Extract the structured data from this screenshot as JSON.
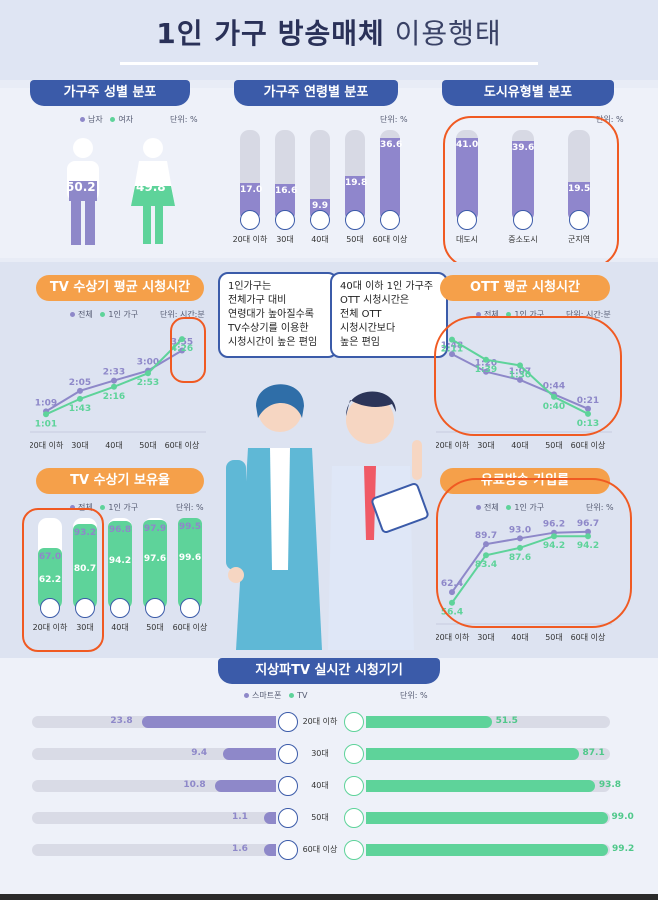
{
  "title": {
    "bold": "1인 가구",
    "bold2": "방송매체",
    "normal": "이용행태"
  },
  "legend": {
    "male": "남자",
    "female": "여자",
    "total": "전체",
    "single": "1인 가구",
    "smartphone": "스마트폰",
    "tv": "TV",
    "unit_pct": "단위: %",
    "unit_time": "단위: 시간:분"
  },
  "sections": {
    "gender": "가구주 성별 분포",
    "age": "가구주 연령별 분포",
    "city": "도시유형별 분포",
    "tv_time": "TV 수상기 평균 시청시간",
    "ott_time": "OTT 평균 시청시간",
    "tv_own": "TV 수상기 보유율",
    "paid": "유료방송 가입률",
    "realtime": "지상파TV 실시간 시청기기"
  },
  "gender": {
    "male": "50.2",
    "female": "49.8"
  },
  "age_dist": {
    "labels": [
      "20대 이하",
      "30대",
      "40대",
      "50대",
      "60대 이상"
    ],
    "values": [
      17.0,
      16.6,
      9.9,
      19.8,
      36.6
    ],
    "display": [
      "17.0",
      "16.6",
      "9.9",
      "19.8",
      "36.6"
    ]
  },
  "city_dist": {
    "labels": [
      "대도시",
      "중소도시",
      "군지역"
    ],
    "values": [
      41.0,
      39.6,
      19.5
    ],
    "display": [
      "41.0",
      "39.6",
      "19.5"
    ]
  },
  "callouts": {
    "left": [
      "1인가구는",
      "전체가구 대비",
      "연령대가 높아질수록",
      "TV수상기를 이용한",
      "시청시간이 높은 편임"
    ],
    "right": [
      "40대 이하 1인 가구주",
      "OTT 시청시간은",
      "전체 OTT",
      "시청시간보다",
      "높은 편임"
    ]
  },
  "tv_time": {
    "labels": [
      "20대 이하",
      "30대",
      "40대",
      "50대",
      "60대 이상"
    ],
    "total": [
      "1:09",
      "2:05",
      "2:33",
      "3:00",
      "3:55"
    ],
    "single": [
      "1:01",
      "1:43",
      "2:16",
      "2:53",
      "4:26"
    ]
  },
  "ott_time": {
    "labels": [
      "20대 이하",
      "30대",
      "40대",
      "50대",
      "60대 이상"
    ],
    "total": [
      "1:48",
      "1:20",
      "1:07",
      "0:44",
      "0:21"
    ],
    "single": [
      "2:11",
      "1:39",
      "1:30",
      "0:40",
      "0:13"
    ]
  },
  "tv_own": {
    "labels": [
      "20대 이하",
      "30대",
      "40대",
      "50대",
      "60대 이상"
    ],
    "total": [
      67.0,
      93.2,
      96.8,
      97.9,
      99.5
    ],
    "single": [
      62.2,
      80.7,
      94.2,
      97.6,
      99.6
    ],
    "total_display": [
      "67.0",
      "93.2",
      "96.8",
      "97.9",
      "99.5"
    ],
    "single_display": [
      "62.2",
      "80.7",
      "94.2",
      "97.6",
      "99.6"
    ]
  },
  "paid": {
    "labels": [
      "20대 이하",
      "30대",
      "40대",
      "50대",
      "60대 이상"
    ],
    "total": [
      "62.4",
      "89.7",
      "93.0",
      "96.2",
      "96.7"
    ],
    "single": [
      "56.4",
      "83.4",
      "87.6",
      "94.2",
      "94.2"
    ]
  },
  "realtime": {
    "labels": [
      "20대 이하",
      "30대",
      "40대",
      "50대",
      "60대 이상"
    ],
    "smartphone": [
      23.8,
      9.4,
      10.8,
      1.1,
      1.6
    ],
    "tv": [
      51.5,
      87.1,
      93.8,
      99.0,
      99.2
    ],
    "smartphone_display": [
      "23.8",
      "9.4",
      "10.8",
      "1.1",
      "1.6"
    ],
    "tv_display": [
      "51.5",
      "87.1",
      "93.8",
      "99.0",
      "99.2"
    ]
  },
  "colors": {
    "navy": "#3b5ba9",
    "orange": "#f5a04a",
    "purple": "#8e88c9",
    "green": "#5ed39a",
    "annotation": "#f05a22"
  }
}
